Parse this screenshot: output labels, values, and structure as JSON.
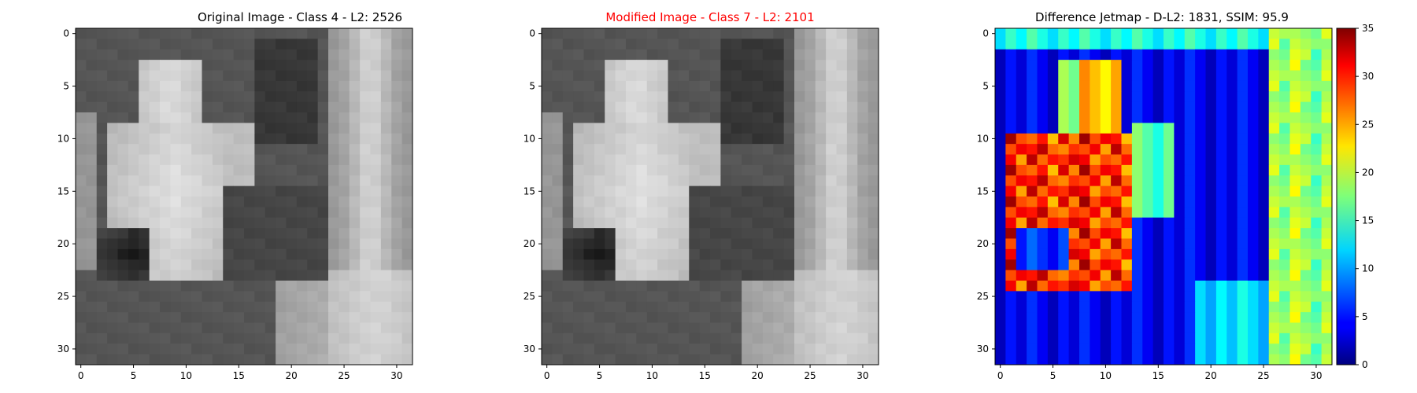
{
  "chart_data": [
    {
      "type": "heatmap",
      "colormap": "gray",
      "title": "Original Image - Class 4 - L2: 2526",
      "title_color": "#000000",
      "grid": false,
      "xlim": [
        -0.5,
        31.5
      ],
      "ylim": [
        31.5,
        -0.5
      ],
      "xticks": [
        0,
        5,
        10,
        15,
        20,
        25,
        30
      ],
      "yticks": [
        0,
        5,
        10,
        15,
        20,
        25,
        30
      ],
      "content_estimate": "32x32 grayscale: light vertical stripe near columns 25-30, bright figure around columns 3-15 rows 3-24, dark region at rows 19-22 columns 2-6"
    },
    {
      "type": "heatmap",
      "colormap": "gray",
      "title": "Modified Image - Class 7 - L2: 2101",
      "title_color": "#ff0000",
      "grid": false,
      "xlim": [
        -0.5,
        31.5
      ],
      "ylim": [
        31.5,
        -0.5
      ],
      "xticks": [
        0,
        5,
        10,
        15,
        20,
        25,
        30
      ],
      "yticks": [
        0,
        5,
        10,
        15,
        20,
        25,
        30
      ],
      "content_estimate": "Visually near-identical to the original image"
    },
    {
      "type": "heatmap",
      "colormap": "jet",
      "title": "Difference Jetmap - D-L2: 1831, SSIM: 95.9",
      "title_color": "#000000",
      "grid": false,
      "xlim": [
        -0.5,
        31.5
      ],
      "ylim": [
        31.5,
        -0.5
      ],
      "xticks": [
        0,
        5,
        10,
        15,
        20,
        25,
        30
      ],
      "yticks": [
        0,
        5,
        10,
        15,
        20,
        25,
        30
      ],
      "colorbar": {
        "min": 0,
        "max": 35,
        "ticks": [
          0,
          5,
          10,
          15,
          20,
          25,
          30,
          35
        ],
        "placement": "right"
      },
      "content_estimate": "High differences (25-35) along the bright figure columns 1-12 rows 10-24; mid values (15-22) along stripe columns 26-31; low values (2-8) elsewhere"
    }
  ]
}
